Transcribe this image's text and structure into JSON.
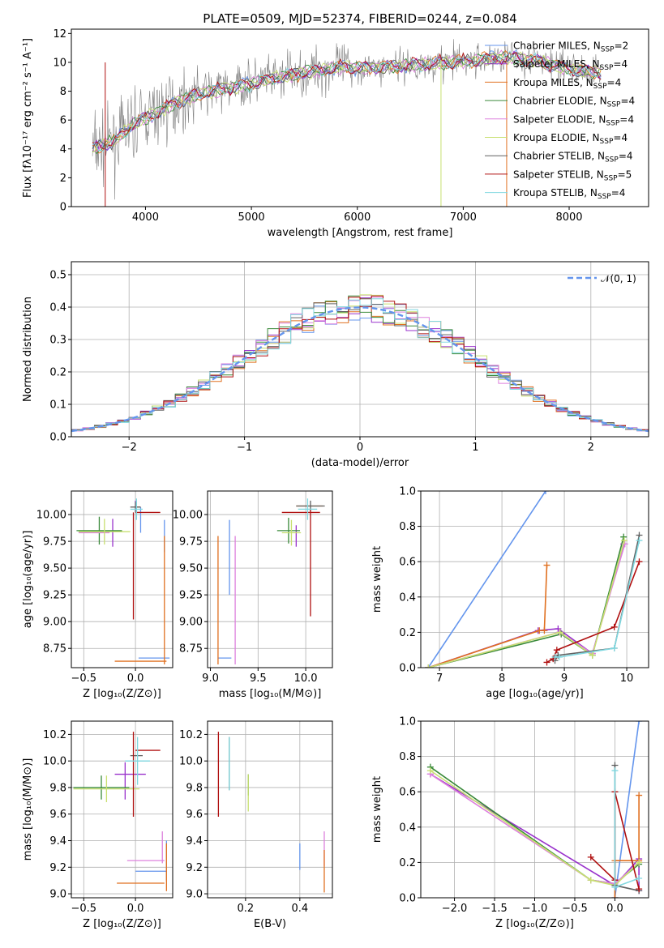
{
  "colors": {
    "Chabrier MILES": "#6495ed",
    "Salpeter MILES": "#9932cc",
    "Kroupa MILES": "#e07020",
    "Chabrier ELODIE": "#3a8a3a",
    "Salpeter ELODIE": "#dd80dd",
    "Kroupa ELODIE": "#c8e070",
    "Chabrier STELIB": "#606060",
    "Salpeter STELIB": "#b01010",
    "Kroupa STELIB": "#80d8e0",
    "data": "#808080",
    "normal": "#6495ed"
  },
  "chart_data": [
    {
      "id": "spectrum",
      "type": "line",
      "title": "PLATE=0509, MJD=52374, FIBERID=0244, z=0.084",
      "xlabel": "wavelength [Angstrom, rest frame]",
      "ylabel": "Flux [fλ10⁻¹⁷ erg cm⁻² s⁻¹ A⁻¹]",
      "xlim": [
        3300,
        8750
      ],
      "ylim": [
        0,
        12.3
      ],
      "xticks": [
        4000,
        5000,
        6000,
        7000,
        8000
      ],
      "yticks": [
        0,
        2,
        4,
        6,
        8,
        10,
        12
      ],
      "legend_loc": "right",
      "legend": [
        {
          "model": "Chabrier MILES",
          "label": "Chabrier MILES, N",
          "sub": "SSP",
          "n": "=2"
        },
        {
          "model": "Salpeter MILES",
          "label": "Salpeter MILES, N",
          "sub": "SSP",
          "n": "=4"
        },
        {
          "model": "Kroupa MILES",
          "label": "Kroupa MILES, N",
          "sub": "SSP",
          "n": "=4"
        },
        {
          "model": "Chabrier ELODIE",
          "label": "Chabrier ELODIE, N",
          "sub": "SSP",
          "n": "=4"
        },
        {
          "model": "Salpeter ELODIE",
          "label": "Salpeter ELODIE, N",
          "sub": "SSP",
          "n": "=4"
        },
        {
          "model": "Kroupa ELODIE",
          "label": "Kroupa ELODIE, N",
          "sub": "SSP",
          "n": "=4"
        },
        {
          "model": "Chabrier STELIB",
          "label": "Chabrier STELIB, N",
          "sub": "SSP",
          "n": "=4"
        },
        {
          "model": "Salpeter STELIB",
          "label": "Salpeter STELIB, N",
          "sub": "SSP",
          "n": "=5"
        },
        {
          "model": "Kroupa STELIB",
          "label": "Kroupa STELIB, N",
          "sub": "SSP",
          "n": "=4"
        }
      ],
      "continuum_x": [
        3500,
        3700,
        3900,
        4100,
        4300,
        4500,
        4700,
        4900,
        5100,
        5300,
        5500,
        5700,
        5900,
        6100,
        6300,
        6500,
        6700,
        6900,
        7100,
        7300,
        7500,
        7700,
        7900,
        8100,
        8300
      ],
      "continuum_y": [
        4.0,
        4.5,
        5.8,
        6.5,
        7.3,
        7.8,
        8.1,
        8.4,
        8.7,
        9.0,
        9.3,
        9.5,
        9.7,
        9.6,
        9.7,
        9.8,
        9.9,
        10.0,
        10.1,
        10.3,
        10.3,
        10.1,
        9.7,
        9.4,
        9.3
      ]
    },
    {
      "id": "residuals",
      "type": "line",
      "xlabel": "(data-model)/error",
      "ylabel": "Normed distribution",
      "xlim": [
        -2.5,
        2.5
      ],
      "ylim": [
        0,
        0.54
      ],
      "xticks": [
        -2,
        -1,
        0,
        1,
        2
      ],
      "yticks": [
        0.0,
        0.1,
        0.2,
        0.3,
        0.4,
        0.5
      ],
      "legend": [
        {
          "label": "𝒩(0, 1)"
        }
      ],
      "legend_loc": "top-right",
      "grid": true
    },
    {
      "id": "age-vs-z",
      "type": "scatter",
      "xlabel": "Z [log₁₀(Z/Z⊙)]",
      "ylabel": "age  [log₁₀(age/yr)]",
      "xlim": [
        -0.62,
        0.36
      ],
      "ylim": [
        8.57,
        10.22
      ],
      "xticks": [
        -0.5,
        0.0
      ],
      "yticks": [
        8.75,
        9.0,
        9.25,
        9.5,
        9.75,
        10.0
      ],
      "grid": true,
      "crosses": [
        {
          "model": "Chabrier MILES",
          "x": 0.18,
          "y": 8.66,
          "xerr": 0.15,
          "yerr": 0
        },
        {
          "model": "Chabrier MILES",
          "x": 0.05,
          "y": 9.95,
          "xerr": 0,
          "yerr": 0.12
        },
        {
          "model": "Chabrier MILES",
          "x": 0.28,
          "y": 9.8,
          "xerr": 0,
          "yerr": 0.15
        },
        {
          "model": "Salpeter MILES",
          "x": -0.22,
          "y": 9.83,
          "xerr": 0,
          "yerr": 0.13
        },
        {
          "model": "Salpeter MILES",
          "x": 0.0,
          "y": 10.08,
          "xerr": 0,
          "yerr": 0.05
        },
        {
          "model": "Kroupa MILES",
          "x": 0.28,
          "y": 9.2,
          "xerr": 0,
          "yerr": 0.6
        },
        {
          "model": "Kroupa MILES",
          "x": 0.05,
          "y": 8.63,
          "xerr": 0.25,
          "yerr": 0
        },
        {
          "model": "Kroupa MILES",
          "x": 0.02,
          "y": 10.07,
          "xerr": 0.03,
          "yerr": 0
        },
        {
          "model": "Chabrier ELODIE",
          "x": -0.35,
          "y": 9.85,
          "xerr": 0.22,
          "yerr": 0.13
        },
        {
          "model": "Salpeter ELODIE",
          "x": -0.4,
          "y": 9.83,
          "xerr": 0.15,
          "yerr": 0
        },
        {
          "model": "Kroupa ELODIE",
          "x": -0.3,
          "y": 9.84,
          "xerr": 0.25,
          "yerr": 0.12
        },
        {
          "model": "Chabrier STELIB",
          "x": 0.0,
          "y": 10.07,
          "xerr": 0.05,
          "yerr": 0.05
        },
        {
          "model": "Salpeter STELIB",
          "x": -0.02,
          "y": 9.52,
          "xerr": 0,
          "yerr": 0.5
        },
        {
          "model": "Salpeter STELIB",
          "x": 0.12,
          "y": 10.02,
          "xerr": 0.12,
          "yerr": 0
        },
        {
          "model": "Kroupa STELIB",
          "x": 0.01,
          "y": 10.05,
          "xerr": 0.06,
          "yerr": 0.1
        }
      ]
    },
    {
      "id": "age-vs-mass",
      "type": "scatter",
      "xlabel": "mass [log₁₀(M/M⊙)]",
      "xlim": [
        8.97,
        10.28
      ],
      "ylim": [
        8.57,
        10.22
      ],
      "xticks": [
        9.0,
        9.5,
        10.0
      ],
      "yticks": [
        8.75,
        9.0,
        9.25,
        9.5,
        9.75,
        10.0
      ],
      "grid": true,
      "crosses": [
        {
          "model": "Chabrier MILES",
          "x": 9.15,
          "y": 8.66,
          "xerr": 0.07,
          "yerr": 0
        },
        {
          "model": "Chabrier MILES",
          "x": 9.2,
          "y": 9.6,
          "xerr": 0,
          "yerr": 0.35
        },
        {
          "model": "Salpeter MILES",
          "x": 9.9,
          "y": 9.8,
          "xerr": 0,
          "yerr": 0.1
        },
        {
          "model": "Kroupa MILES",
          "x": 9.08,
          "y": 9.2,
          "xerr": 0,
          "yerr": 0.6
        },
        {
          "model": "Kroupa MILES",
          "x": 10.04,
          "y": 10.08,
          "xerr": 0.14,
          "yerr": 0
        },
        {
          "model": "Chabrier ELODIE",
          "x": 9.82,
          "y": 9.85,
          "xerr": 0.12,
          "yerr": 0.12
        },
        {
          "model": "Salpeter ELODIE",
          "x": 9.26,
          "y": 9.2,
          "xerr": 0,
          "yerr": 0.6
        },
        {
          "model": "Kroupa ELODIE",
          "x": 9.85,
          "y": 9.83,
          "xerr": 0.1,
          "yerr": 0.12
        },
        {
          "model": "Chabrier STELIB",
          "x": 10.05,
          "y": 10.08,
          "xerr": 0.15,
          "yerr": 0.05
        },
        {
          "model": "Salpeter STELIB",
          "x": 10.05,
          "y": 9.55,
          "xerr": 0,
          "yerr": 0.5
        },
        {
          "model": "Salpeter STELIB",
          "x": 9.95,
          "y": 10.02,
          "xerr": 0.2,
          "yerr": 0
        },
        {
          "model": "Kroupa STELIB",
          "x": 10.02,
          "y": 10.05,
          "xerr": 0.1,
          "yerr": 0.1
        }
      ]
    },
    {
      "id": "weight-vs-age",
      "type": "line",
      "xlabel": "age  [log₁₀(age/yr)]",
      "ylabel": "mass weight",
      "xlim": [
        6.7,
        10.35
      ],
      "ylim": [
        0,
        1.0
      ],
      "xticks": [
        7,
        8,
        9,
        10
      ],
      "yticks": [
        0.0,
        0.2,
        0.4,
        0.6,
        0.8,
        1.0
      ],
      "grid": true,
      "series": [
        {
          "model": "Chabrier MILES",
          "x": [
            6.82,
            8.7
          ],
          "y": [
            0.0,
            1.0
          ]
        },
        {
          "model": "Salpeter MILES",
          "x": [
            6.82,
            8.58,
            8.9,
            9.45,
            9.95
          ],
          "y": [
            0.0,
            0.21,
            0.22,
            0.08,
            0.7
          ]
        },
        {
          "model": "Kroupa MILES",
          "x": [
            6.82,
            8.6,
            8.68,
            8.72
          ],
          "y": [
            0.0,
            0.21,
            0.21,
            0.58
          ]
        },
        {
          "model": "Chabrier ELODIE",
          "x": [
            6.82,
            8.95,
            9.45,
            9.95
          ],
          "y": [
            0.0,
            0.19,
            0.07,
            0.74
          ]
        },
        {
          "model": "Salpeter ELODIE",
          "x": [
            6.82,
            8.92,
            9.45,
            9.97
          ],
          "y": [
            0.0,
            0.2,
            0.08,
            0.7
          ]
        },
        {
          "model": "Kroupa ELODIE",
          "x": [
            6.82,
            8.93,
            9.45,
            9.96
          ],
          "y": [
            0.0,
            0.2,
            0.07,
            0.72
          ]
        },
        {
          "model": "Chabrier STELIB",
          "x": [
            8.85,
            8.9,
            9.8,
            10.2
          ],
          "y": [
            0.04,
            0.07,
            0.11,
            0.75
          ]
        },
        {
          "model": "Salpeter STELIB",
          "x": [
            8.72,
            8.82,
            8.88,
            9.8,
            10.2
          ],
          "y": [
            0.03,
            0.05,
            0.1,
            0.23,
            0.6
          ]
        },
        {
          "model": "Kroupa STELIB",
          "x": [
            8.85,
            8.92,
            9.8,
            10.2
          ],
          "y": [
            0.06,
            0.06,
            0.11,
            0.72
          ]
        }
      ]
    },
    {
      "id": "mass-vs-z",
      "type": "scatter",
      "xlabel": "Z [log₁₀(Z/Z⊙)]",
      "ylabel": "mass [log₁₀(M/M⊙)]",
      "xlim": [
        -0.62,
        0.36
      ],
      "ylim": [
        8.97,
        10.3
      ],
      "xticks": [
        -0.5,
        0.0
      ],
      "yticks": [
        9.0,
        9.2,
        9.4,
        9.6,
        9.8,
        10.0,
        10.2
      ],
      "grid": true,
      "crosses": [
        {
          "model": "Chabrier MILES",
          "x": 0.15,
          "y": 9.17,
          "xerr": 0.15,
          "yerr": 0
        },
        {
          "model": "Chabrier MILES",
          "x": 0.3,
          "y": 9.25,
          "xerr": 0,
          "yerr": 0.15
        },
        {
          "model": "Salpeter MILES",
          "x": -0.05,
          "y": 9.9,
          "xerr": 0.15,
          "yerr": 0
        },
        {
          "model": "Salpeter MILES",
          "x": -0.1,
          "y": 9.85,
          "xerr": 0,
          "yerr": 0.14
        },
        {
          "model": "Kroupa MILES",
          "x": 0.05,
          "y": 9.08,
          "xerr": 0.23,
          "yerr": 0
        },
        {
          "model": "Kroupa MILES",
          "x": 0.3,
          "y": 9.2,
          "xerr": 0,
          "yerr": 0.18
        },
        {
          "model": "Chabrier ELODIE",
          "x": -0.33,
          "y": 9.8,
          "xerr": 0.27,
          "yerr": 0.09
        },
        {
          "model": "Salpeter ELODIE",
          "x": 0.1,
          "y": 9.25,
          "xerr": 0.18,
          "yerr": 0
        },
        {
          "model": "Salpeter ELODIE",
          "x": 0.26,
          "y": 9.35,
          "xerr": 0,
          "yerr": 0.12
        },
        {
          "model": "Kroupa ELODIE",
          "x": -0.28,
          "y": 9.79,
          "xerr": 0.32,
          "yerr": 0.1
        },
        {
          "model": "Chabrier STELIB",
          "x": 0.01,
          "y": 10.04,
          "xerr": 0.06,
          "yerr": 0
        },
        {
          "model": "Salpeter STELIB",
          "x": -0.02,
          "y": 9.9,
          "xerr": 0,
          "yerr": 0.32
        },
        {
          "model": "Salpeter STELIB",
          "x": 0.12,
          "y": 10.08,
          "xerr": 0.12,
          "yerr": 0
        },
        {
          "model": "Kroupa STELIB",
          "x": 0.02,
          "y": 10.0,
          "xerr": 0.12,
          "yerr": 0.18
        }
      ]
    },
    {
      "id": "mass-vs-ebv",
      "type": "scatter",
      "xlabel": "E(B-V)",
      "xlim": [
        0.06,
        0.52
      ],
      "ylim": [
        8.97,
        10.3
      ],
      "xticks": [
        0.2,
        0.4
      ],
      "yticks": [
        9.0,
        9.2,
        9.4,
        9.6,
        9.8,
        10.0,
        10.2
      ],
      "grid": true,
      "crosses": [
        {
          "model": "Salpeter STELIB",
          "x": 0.1,
          "y": 9.9,
          "xerr": 0,
          "yerr": 0.32
        },
        {
          "model": "Chabrier STELIB",
          "x": 0.14,
          "y": 9.98,
          "xerr": 0,
          "yerr": 0.2
        },
        {
          "model": "Kroupa STELIB",
          "x": 0.14,
          "y": 9.98,
          "xerr": 0,
          "yerr": 0.2
        },
        {
          "model": "Chabrier ELODIE",
          "x": 0.21,
          "y": 9.82,
          "xerr": 0,
          "yerr": 0.08
        },
        {
          "model": "Kroupa ELODIE",
          "x": 0.21,
          "y": 9.76,
          "xerr": 0,
          "yerr": 0.14
        },
        {
          "model": "Chabrier MILES",
          "x": 0.4,
          "y": 9.28,
          "xerr": 0,
          "yerr": 0.1
        },
        {
          "model": "Salpeter ELODIE",
          "x": 0.49,
          "y": 9.34,
          "xerr": 0,
          "yerr": 0.13
        },
        {
          "model": "Kroupa MILES",
          "x": 0.49,
          "y": 9.17,
          "xerr": 0,
          "yerr": 0.16
        }
      ]
    },
    {
      "id": "weight-vs-z",
      "type": "line",
      "xlabel": "Z [log₁₀(Z/Z⊙)]",
      "ylabel": "mass weight",
      "xlim": [
        -2.42,
        0.42
      ],
      "ylim": [
        0,
        1.0
      ],
      "xticks": [
        -2.0,
        -1.5,
        -1.0,
        -0.5,
        0.0
      ],
      "yticks": [
        0.0,
        0.2,
        0.4,
        0.6,
        0.8,
        1.0
      ],
      "grid": true,
      "series": [
        {
          "model": "Chabrier MILES",
          "x": [
            0.0,
            0.0,
            0.3
          ],
          "y": [
            0.0,
            0.0,
            1.0
          ]
        },
        {
          "model": "Salpeter MILES",
          "x": [
            -2.3,
            0.0,
            0.3,
            0.3
          ],
          "y": [
            0.7,
            0.07,
            0.22,
            0.04
          ]
        },
        {
          "model": "Kroupa MILES",
          "x": [
            0.0,
            0.0,
            0.3,
            0.3
          ],
          "y": [
            0.0,
            0.21,
            0.21,
            0.58
          ]
        },
        {
          "model": "Chabrier ELODIE",
          "x": [
            -2.3,
            -0.3,
            0.0,
            0.3
          ],
          "y": [
            0.74,
            0.1,
            0.08,
            0.19
          ]
        },
        {
          "model": "Salpeter ELODIE",
          "x": [
            -2.3,
            -0.3,
            0.0,
            0.3
          ],
          "y": [
            0.7,
            0.1,
            0.08,
            0.2
          ]
        },
        {
          "model": "Kroupa ELODIE",
          "x": [
            -2.3,
            -0.3,
            0.0,
            0.3
          ],
          "y": [
            0.72,
            0.1,
            0.07,
            0.2
          ]
        },
        {
          "model": "Chabrier STELIB",
          "x": [
            0.0,
            0.0,
            0.3
          ],
          "y": [
            0.75,
            0.07,
            0.04
          ]
        },
        {
          "model": "Salpeter STELIB",
          "x": [
            -0.3,
            0.0,
            0.0,
            0.3
          ],
          "y": [
            0.23,
            0.1,
            0.6,
            0.05
          ]
        },
        {
          "model": "Kroupa STELIB",
          "x": [
            0.0,
            0.0,
            0.3
          ],
          "y": [
            0.72,
            0.06,
            0.11
          ]
        }
      ]
    }
  ]
}
